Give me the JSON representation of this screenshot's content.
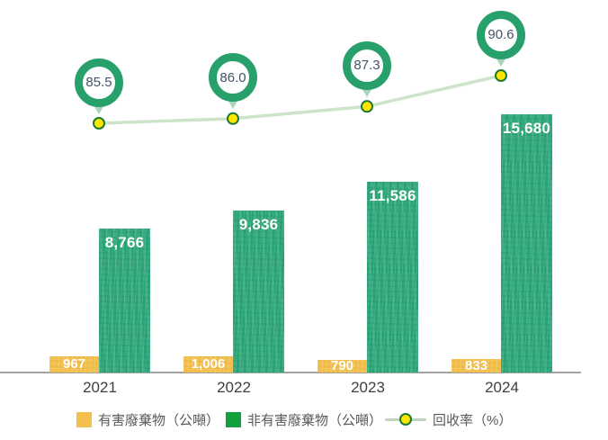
{
  "chart_data": {
    "type": "bar",
    "subtype": "combo-bar-line",
    "categories": [
      "2021",
      "2022",
      "2023",
      "2024"
    ],
    "series": [
      {
        "name": "有害廢棄物（公噸）",
        "render": "bar",
        "color": "#F3BF4D",
        "values": [
          967,
          1006,
          790,
          833
        ],
        "labels": [
          "967",
          "1,006",
          "790",
          "833"
        ]
      },
      {
        "name": "非有害廢棄物（公噸）",
        "render": "bar",
        "color": "#2BA577",
        "values": [
          8766,
          9836,
          11586,
          15680
        ],
        "labels": [
          "8,766",
          "9,836",
          "11,586",
          "15,680"
        ]
      },
      {
        "name": "回收率（%）",
        "render": "line",
        "line_color": "#CDE4CB",
        "marker_fill": "#FFE500",
        "marker_border": "#1C7A33",
        "callout_ring_color": "#28A06B",
        "callout_text_color": "#44546A",
        "values": [
          85.5,
          86.0,
          87.3,
          90.6
        ],
        "labels": [
          "85.5",
          "86.0",
          "87.3",
          "90.6"
        ]
      }
    ],
    "bar_ylim": [
      0,
      16500
    ],
    "line_ylim": [
      84,
      92
    ],
    "grid": false,
    "legend_position": "bottom",
    "axis_color": "#A3A3A3",
    "category_label_color": "#3F3F3F",
    "legend_text_color": "#595959",
    "background": "#FFFFFF"
  }
}
